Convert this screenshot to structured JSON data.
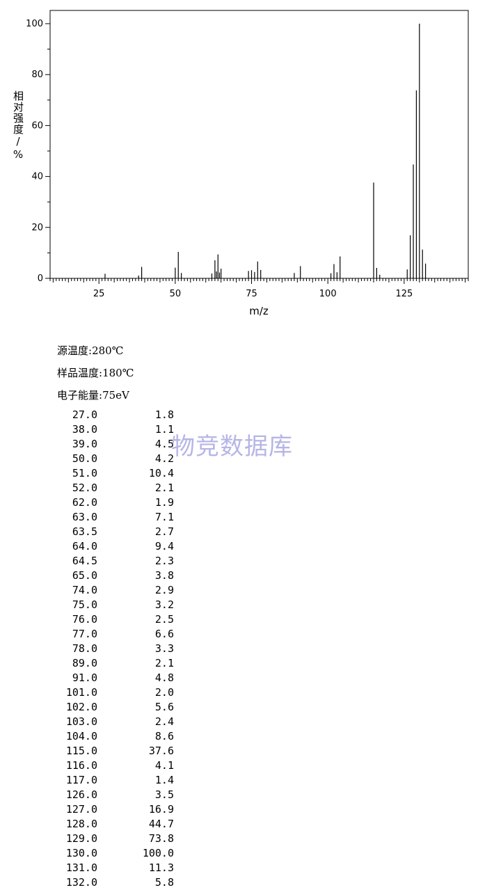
{
  "chart_data": {
    "type": "bar",
    "xlabel": "m/z",
    "ylabel": "相对强度/%",
    "xlim": [
      9,
      146
    ],
    "ylim": [
      0,
      100
    ],
    "x_ticks": [
      25,
      50,
      75,
      100,
      125
    ],
    "y_ticks": [
      0,
      20,
      40,
      60,
      80,
      100
    ],
    "grid": false,
    "peaks": [
      {
        "x": 27.0,
        "y": 1.8
      },
      {
        "x": 38.0,
        "y": 1.1
      },
      {
        "x": 39.0,
        "y": 4.5
      },
      {
        "x": 50.0,
        "y": 4.2
      },
      {
        "x": 51.0,
        "y": 10.4
      },
      {
        "x": 52.0,
        "y": 2.1
      },
      {
        "x": 62.0,
        "y": 1.9
      },
      {
        "x": 63.0,
        "y": 7.1
      },
      {
        "x": 63.5,
        "y": 2.7
      },
      {
        "x": 64.0,
        "y": 9.4
      },
      {
        "x": 64.5,
        "y": 2.3
      },
      {
        "x": 65.0,
        "y": 3.8
      },
      {
        "x": 74.0,
        "y": 2.9
      },
      {
        "x": 75.0,
        "y": 3.2
      },
      {
        "x": 76.0,
        "y": 2.5
      },
      {
        "x": 77.0,
        "y": 6.6
      },
      {
        "x": 78.0,
        "y": 3.3
      },
      {
        "x": 89.0,
        "y": 2.1
      },
      {
        "x": 91.0,
        "y": 4.8
      },
      {
        "x": 101.0,
        "y": 2.0
      },
      {
        "x": 102.0,
        "y": 5.6
      },
      {
        "x": 103.0,
        "y": 2.4
      },
      {
        "x": 104.0,
        "y": 8.6
      },
      {
        "x": 115.0,
        "y": 37.6
      },
      {
        "x": 116.0,
        "y": 4.1
      },
      {
        "x": 117.0,
        "y": 1.4
      },
      {
        "x": 126.0,
        "y": 3.5
      },
      {
        "x": 127.0,
        "y": 16.9
      },
      {
        "x": 128.0,
        "y": 44.7
      },
      {
        "x": 129.0,
        "y": 73.8
      },
      {
        "x": 130.0,
        "y": 100.0
      },
      {
        "x": 131.0,
        "y": 11.3
      },
      {
        "x": 132.0,
        "y": 5.8
      }
    ]
  },
  "conditions": [
    {
      "label": "源温度:",
      "value": "280℃"
    },
    {
      "label": "样品温度:",
      "value": "180℃"
    },
    {
      "label": "电子能量:",
      "value": "75eV"
    }
  ],
  "peak_table": [
    {
      "mz": "27.0",
      "intensity": "1.8"
    },
    {
      "mz": "38.0",
      "intensity": "1.1"
    },
    {
      "mz": "39.0",
      "intensity": "4.5"
    },
    {
      "mz": "50.0",
      "intensity": "4.2"
    },
    {
      "mz": "51.0",
      "intensity": "10.4"
    },
    {
      "mz": "52.0",
      "intensity": "2.1"
    },
    {
      "mz": "62.0",
      "intensity": "1.9"
    },
    {
      "mz": "63.0",
      "intensity": "7.1"
    },
    {
      "mz": "63.5",
      "intensity": "2.7"
    },
    {
      "mz": "64.0",
      "intensity": "9.4"
    },
    {
      "mz": "64.5",
      "intensity": "2.3"
    },
    {
      "mz": "65.0",
      "intensity": "3.8"
    },
    {
      "mz": "74.0",
      "intensity": "2.9"
    },
    {
      "mz": "75.0",
      "intensity": "3.2"
    },
    {
      "mz": "76.0",
      "intensity": "2.5"
    },
    {
      "mz": "77.0",
      "intensity": "6.6"
    },
    {
      "mz": "78.0",
      "intensity": "3.3"
    },
    {
      "mz": "89.0",
      "intensity": "2.1"
    },
    {
      "mz": "91.0",
      "intensity": "4.8"
    },
    {
      "mz": "101.0",
      "intensity": "2.0"
    },
    {
      "mz": "102.0",
      "intensity": "5.6"
    },
    {
      "mz": "103.0",
      "intensity": "2.4"
    },
    {
      "mz": "104.0",
      "intensity": "8.6"
    },
    {
      "mz": "115.0",
      "intensity": "37.6"
    },
    {
      "mz": "116.0",
      "intensity": "4.1"
    },
    {
      "mz": "117.0",
      "intensity": "1.4"
    },
    {
      "mz": "126.0",
      "intensity": "3.5"
    },
    {
      "mz": "127.0",
      "intensity": "16.9"
    },
    {
      "mz": "128.0",
      "intensity": "44.7"
    },
    {
      "mz": "129.0",
      "intensity": "73.8"
    },
    {
      "mz": "130.0",
      "intensity": "100.0"
    },
    {
      "mz": "131.0",
      "intensity": "11.3"
    },
    {
      "mz": "132.0",
      "intensity": "5.8"
    }
  ],
  "watermark": "物竞数据库",
  "colors": {
    "bars": "#000000",
    "axes": "#000000",
    "watermark": "#7878d2"
  }
}
